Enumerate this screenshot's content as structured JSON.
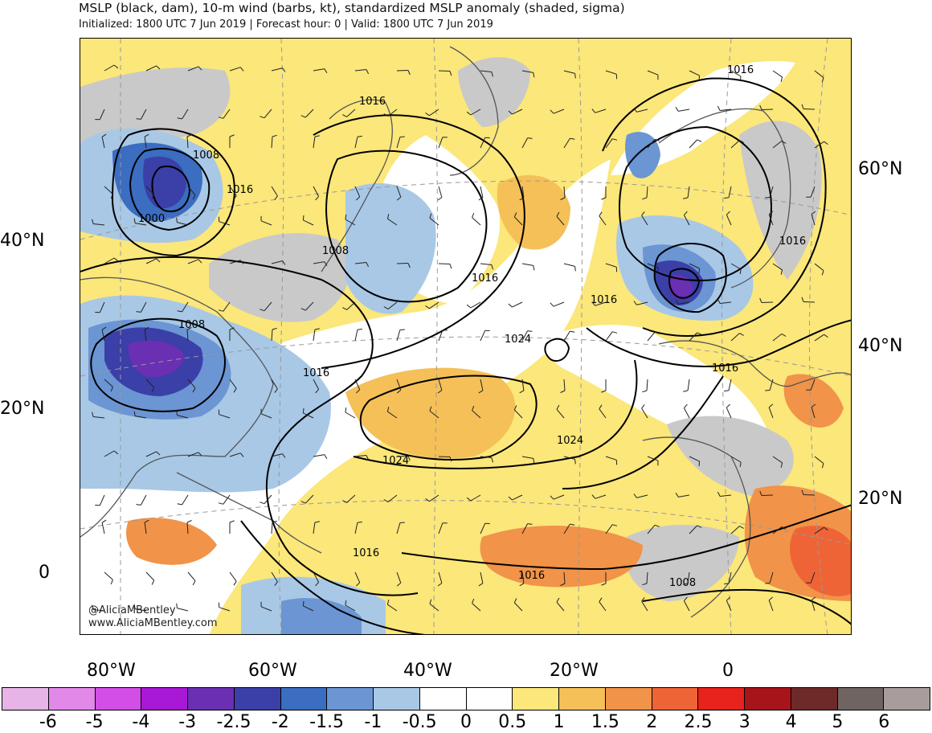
{
  "header": {
    "title": "MSLP (black, dam), 10-m wind (barbs, kt), standardized MSLP anomaly (shaded, sigma)",
    "subtitle": "Initialized: 1800 UTC 7 Jun 2019 | Forecast hour: 0 | Valid: 1800 UTC 7 Jun 2019"
  },
  "map": {
    "credit_handle": "@AliciaMBentley",
    "credit_url": "www.AliciaMBentley.com",
    "lat_labels_left": [
      "40°N",
      "20°N",
      "0"
    ],
    "lat_labels_right": [
      "60°N",
      "40°N",
      "20°N"
    ],
    "lon_labels": [
      "80°W",
      "60°W",
      "40°W",
      "20°W",
      "0"
    ],
    "isobar_labels": [
      "1016",
      "1008",
      "1016",
      "1000",
      "1016",
      "1008",
      "1016",
      "1008",
      "1016",
      "1016",
      "1024",
      "1016",
      "1016",
      "1024",
      "1024",
      "1016",
      "1016",
      "1008"
    ]
  },
  "colorbar": {
    "colors": [
      "#e8b4e8",
      "#e288e8",
      "#d34ee6",
      "#a818d6",
      "#6a2fb3",
      "#3b3fa8",
      "#3b6dc1",
      "#6b95d3",
      "#a8c8e6",
      "#ffffff",
      "#ffffff",
      "#fbe77a",
      "#f5c057",
      "#f19348",
      "#ef6436",
      "#e8221c",
      "#a7151a",
      "#6e2a29",
      "#706462",
      "#a89d9c"
    ],
    "ticks": [
      "-6",
      "-5",
      "-4",
      "-3",
      "-2.5",
      "-2",
      "-1.5",
      "-1",
      "-0.5",
      "0",
      "0.5",
      "1",
      "1.5",
      "2",
      "2.5",
      "3",
      "4",
      "5",
      "6"
    ]
  }
}
